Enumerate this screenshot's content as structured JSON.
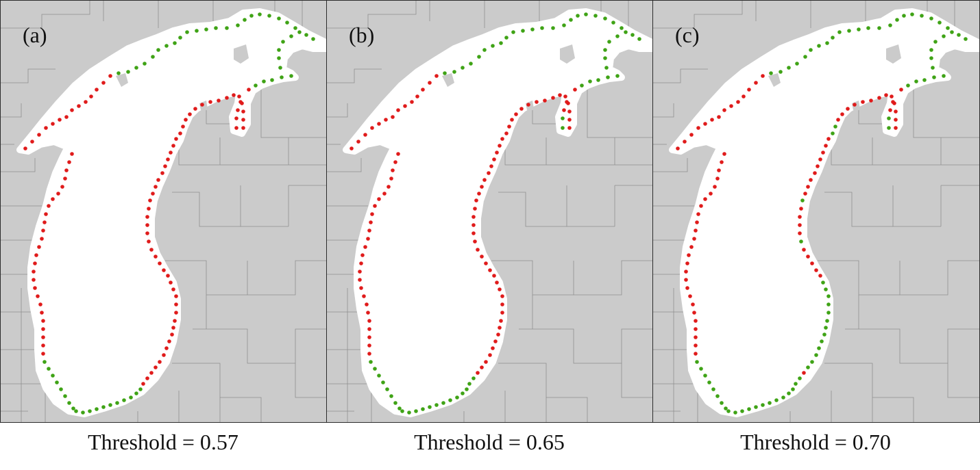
{
  "panels": [
    {
      "label": "(a)",
      "caption": "Threshold = 0.57"
    },
    {
      "label": "(b)",
      "caption": "Threshold = 0.65"
    },
    {
      "label": "(c)",
      "caption": "Threshold = 0.70"
    }
  ],
  "colors": {
    "land": "#cbcbcb",
    "county_lines": "#8f8f8f",
    "water": "#ffffff",
    "green_marker": "#3fa316",
    "red_marker": "#e01b1b"
  }
}
